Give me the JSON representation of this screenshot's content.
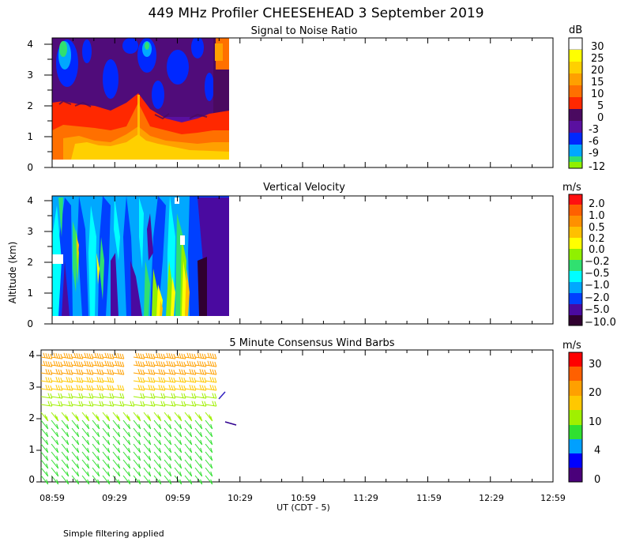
{
  "title": "449 MHz Profiler CHEESEHEAD  3 September 2019",
  "y_axis_label": "Altitude (km)",
  "x_axis_label": "UT  (CDT - 5)",
  "x_ticks": [
    "08:59",
    "09:29",
    "09:59",
    "10:29",
    "10:59",
    "11:29",
    "11:59",
    "12:29",
    "12:59"
  ],
  "footer_note": "Simple filtering applied",
  "chart_data": [
    {
      "type": "heatmap",
      "title": "Signal to Noise Ratio",
      "unit": "dB",
      "y_ticks": [
        "0",
        "1",
        "2",
        "3",
        "4"
      ],
      "ylim": [
        0,
        4.2
      ],
      "data_time_range": [
        "08:59",
        "10:24"
      ],
      "data_altitude_range_km": [
        0.3,
        4.2
      ],
      "colorbar": {
        "labels": [
          "30",
          "25",
          "20",
          "15",
          "10",
          "5",
          "0",
          "-3",
          "-6",
          "-9",
          "-12"
        ],
        "colors": [
          "#ffffff",
          "#ffff00",
          "#ffd000",
          "#ffa000",
          "#ff7000",
          "#ff2800",
          "#4a0a60",
          "#5a10a0",
          "#0028ff",
          "#00a8ff",
          "#30e070",
          "#90f000"
        ]
      },
      "description_levels_dB": [
        15,
        12,
        8,
        0,
        -6
      ]
    },
    {
      "type": "heatmap",
      "title": "Vertical Velocity",
      "unit": "m/s",
      "y_ticks": [
        "0",
        "1",
        "2",
        "3",
        "4"
      ],
      "ylim": [
        0,
        4.2
      ],
      "data_time_range": [
        "08:59",
        "10:24"
      ],
      "data_altitude_range_km": [
        0.3,
        4.2
      ],
      "colorbar": {
        "labels": [
          "2.0",
          "1.0",
          "0.5",
          "0.2",
          "0.0",
          "−0.2",
          "−0.5",
          "−1.0",
          "−2.0",
          "−5.0",
          "−10.0"
        ],
        "colors": [
          "#ff1010",
          "#ff6000",
          "#ff9000",
          "#ffc000",
          "#ffff00",
          "#90f000",
          "#30e070",
          "#00ffff",
          "#00a8ff",
          "#0040ff",
          "#4a0aa0",
          "#300030"
        ]
      }
    },
    {
      "type": "scatter",
      "title": "5 Minute Consensus Wind Barbs",
      "unit": "m/s",
      "y_ticks": [
        "0",
        "1",
        "2",
        "3",
        "4"
      ],
      "ylim": [
        0,
        4.2
      ],
      "data_time_range": [
        "08:59",
        "10:24"
      ],
      "colorbar": {
        "labels": [
          "30",
          "20",
          "10",
          "4",
          "0"
        ],
        "colors": [
          "#ff0000",
          "#ff6000",
          "#ffa000",
          "#ffc800",
          "#a0f000",
          "#30e030",
          "#00a0ff",
          "#0000ff",
          "#4a007a"
        ]
      },
      "wind_speed_profile_ms": [
        {
          "alt_km": 4.0,
          "speed": 24
        },
        {
          "alt_km": 3.5,
          "speed": 20
        },
        {
          "alt_km": 3.0,
          "speed": 16
        },
        {
          "alt_km": 2.5,
          "speed": 12
        },
        {
          "alt_km": 2.0,
          "speed": 9
        },
        {
          "alt_km": 1.5,
          "speed": 7
        },
        {
          "alt_km": 1.0,
          "speed": 6
        },
        {
          "alt_km": 0.5,
          "speed": 6
        }
      ]
    }
  ]
}
